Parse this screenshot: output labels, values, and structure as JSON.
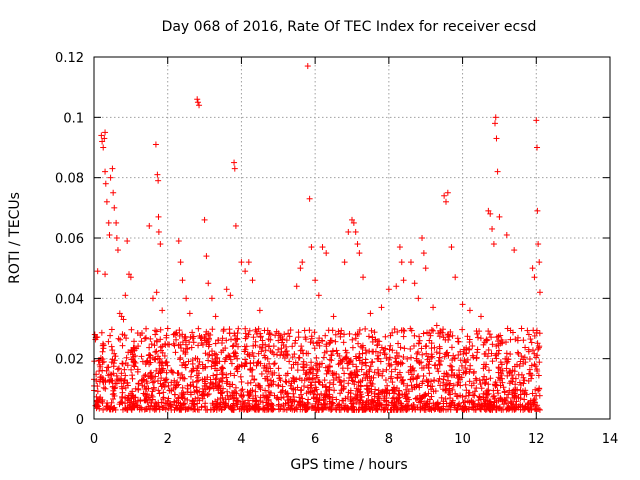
{
  "chart_data": {
    "type": "scatter",
    "title": "Day 068 of 2016, Rate Of TEC Index for receiver ecsd",
    "xlabel": "GPS time / hours",
    "ylabel": "ROTI / TECUs",
    "xlim": [
      0,
      14
    ],
    "ylim": [
      0,
      0.12
    ],
    "x_ticks": [
      0,
      2,
      4,
      6,
      8,
      10,
      12,
      14
    ],
    "y_ticks": [
      0,
      0.02,
      0.04,
      0.06,
      0.08,
      0.1,
      0.12
    ],
    "x_tick_labels": [
      "0",
      "2",
      "4",
      "6",
      "8",
      "10",
      "12",
      "14"
    ],
    "y_tick_labels": [
      "0",
      "0.02",
      "0.04",
      "0.06",
      "0.08",
      "0.1",
      "0.12"
    ],
    "grid": true,
    "marker": "+",
    "marker_color": "#ff0000",
    "grid_color": "#a0a0a0",
    "data_range_hours": [
      0,
      12.1
    ],
    "bulk_band": [
      0.003,
      0.03
    ],
    "series": [
      {
        "name": "ROTI",
        "color": "#ff0000",
        "points": [
          [
            0.05,
            0.027
          ],
          [
            0.2,
            0.094
          ],
          [
            0.22,
            0.092
          ],
          [
            0.25,
            0.09
          ],
          [
            0.28,
            0.093
          ],
          [
            0.3,
            0.095
          ],
          [
            0.3,
            0.082
          ],
          [
            0.32,
            0.078
          ],
          [
            0.35,
            0.072
          ],
          [
            0.4,
            0.065
          ],
          [
            0.42,
            0.061
          ],
          [
            0.45,
            0.08
          ],
          [
            0.5,
            0.083
          ],
          [
            0.52,
            0.075
          ],
          [
            0.55,
            0.07
          ],
          [
            0.6,
            0.065
          ],
          [
            0.62,
            0.06
          ],
          [
            0.65,
            0.056
          ],
          [
            0.1,
            0.049
          ],
          [
            0.3,
            0.048
          ],
          [
            0.7,
            0.035
          ],
          [
            0.75,
            0.034
          ],
          [
            0.8,
            0.033
          ],
          [
            0.9,
            0.059
          ],
          [
            0.95,
            0.048
          ],
          [
            1.0,
            0.047
          ],
          [
            0.85,
            0.041
          ],
          [
            1.6,
            0.04
          ],
          [
            1.68,
            0.091
          ],
          [
            1.72,
            0.081
          ],
          [
            1.74,
            0.079
          ],
          [
            1.75,
            0.067
          ],
          [
            1.76,
            0.062
          ],
          [
            1.5,
            0.064
          ],
          [
            1.8,
            0.058
          ],
          [
            1.7,
            0.042
          ],
          [
            1.85,
            0.036
          ],
          [
            2.0,
            0.03
          ],
          [
            2.2,
            0.028
          ],
          [
            2.3,
            0.059
          ],
          [
            2.35,
            0.052
          ],
          [
            2.4,
            0.046
          ],
          [
            2.5,
            0.04
          ],
          [
            2.6,
            0.035
          ],
          [
            2.8,
            0.106
          ],
          [
            2.82,
            0.105
          ],
          [
            2.85,
            0.104
          ],
          [
            3.0,
            0.066
          ],
          [
            3.05,
            0.054
          ],
          [
            3.1,
            0.045
          ],
          [
            3.2,
            0.04
          ],
          [
            3.3,
            0.034
          ],
          [
            3.6,
            0.043
          ],
          [
            3.7,
            0.041
          ],
          [
            3.8,
            0.085
          ],
          [
            3.82,
            0.083
          ],
          [
            3.85,
            0.064
          ],
          [
            4.0,
            0.052
          ],
          [
            4.1,
            0.049
          ],
          [
            4.2,
            0.052
          ],
          [
            4.3,
            0.046
          ],
          [
            4.5,
            0.036
          ],
          [
            5.0,
            0.026
          ],
          [
            5.5,
            0.044
          ],
          [
            5.6,
            0.05
          ],
          [
            5.65,
            0.052
          ],
          [
            5.8,
            0.117
          ],
          [
            5.85,
            0.073
          ],
          [
            5.9,
            0.057
          ],
          [
            6.0,
            0.046
          ],
          [
            6.1,
            0.041
          ],
          [
            6.2,
            0.057
          ],
          [
            6.3,
            0.055
          ],
          [
            6.5,
            0.034
          ],
          [
            6.8,
            0.052
          ],
          [
            6.9,
            0.062
          ],
          [
            7.0,
            0.066
          ],
          [
            7.05,
            0.065
          ],
          [
            7.1,
            0.062
          ],
          [
            7.15,
            0.058
          ],
          [
            7.2,
            0.055
          ],
          [
            7.3,
            0.047
          ],
          [
            7.5,
            0.035
          ],
          [
            7.8,
            0.037
          ],
          [
            8.0,
            0.043
          ],
          [
            8.2,
            0.044
          ],
          [
            8.3,
            0.057
          ],
          [
            8.35,
            0.052
          ],
          [
            8.4,
            0.046
          ],
          [
            8.6,
            0.052
          ],
          [
            8.7,
            0.045
          ],
          [
            8.8,
            0.04
          ],
          [
            8.9,
            0.06
          ],
          [
            8.95,
            0.055
          ],
          [
            9.0,
            0.05
          ],
          [
            9.2,
            0.037
          ],
          [
            9.3,
            0.031
          ],
          [
            9.5,
            0.074
          ],
          [
            9.55,
            0.072
          ],
          [
            9.6,
            0.075
          ],
          [
            9.7,
            0.057
          ],
          [
            9.8,
            0.047
          ],
          [
            10.0,
            0.038
          ],
          [
            10.2,
            0.036
          ],
          [
            10.5,
            0.034
          ],
          [
            10.7,
            0.069
          ],
          [
            10.75,
            0.068
          ],
          [
            10.8,
            0.063
          ],
          [
            10.85,
            0.058
          ],
          [
            10.88,
            0.098
          ],
          [
            10.9,
            0.1
          ],
          [
            10.92,
            0.093
          ],
          [
            10.95,
            0.082
          ],
          [
            11.0,
            0.067
          ],
          [
            11.2,
            0.061
          ],
          [
            11.4,
            0.056
          ],
          [
            11.6,
            0.03
          ],
          [
            11.9,
            0.05
          ],
          [
            11.95,
            0.047
          ],
          [
            12.0,
            0.099
          ],
          [
            12.02,
            0.09
          ],
          [
            12.03,
            0.069
          ],
          [
            12.05,
            0.058
          ],
          [
            12.08,
            0.052
          ],
          [
            12.1,
            0.042
          ],
          [
            11.8,
            0.028
          ],
          [
            11.5,
            0.026
          ],
          [
            0.9,
            0.012
          ],
          [
            1.2,
            0.01
          ],
          [
            3.0,
            0.013
          ],
          [
            4.5,
            0.011
          ],
          [
            5.1,
            0.009
          ],
          [
            6.4,
            0.012
          ],
          [
            7.4,
            0.01
          ],
          [
            8.5,
            0.011
          ],
          [
            9.6,
            0.014
          ],
          [
            10.6,
            0.012
          ],
          [
            11.7,
            0.004
          ]
        ]
      }
    ]
  }
}
